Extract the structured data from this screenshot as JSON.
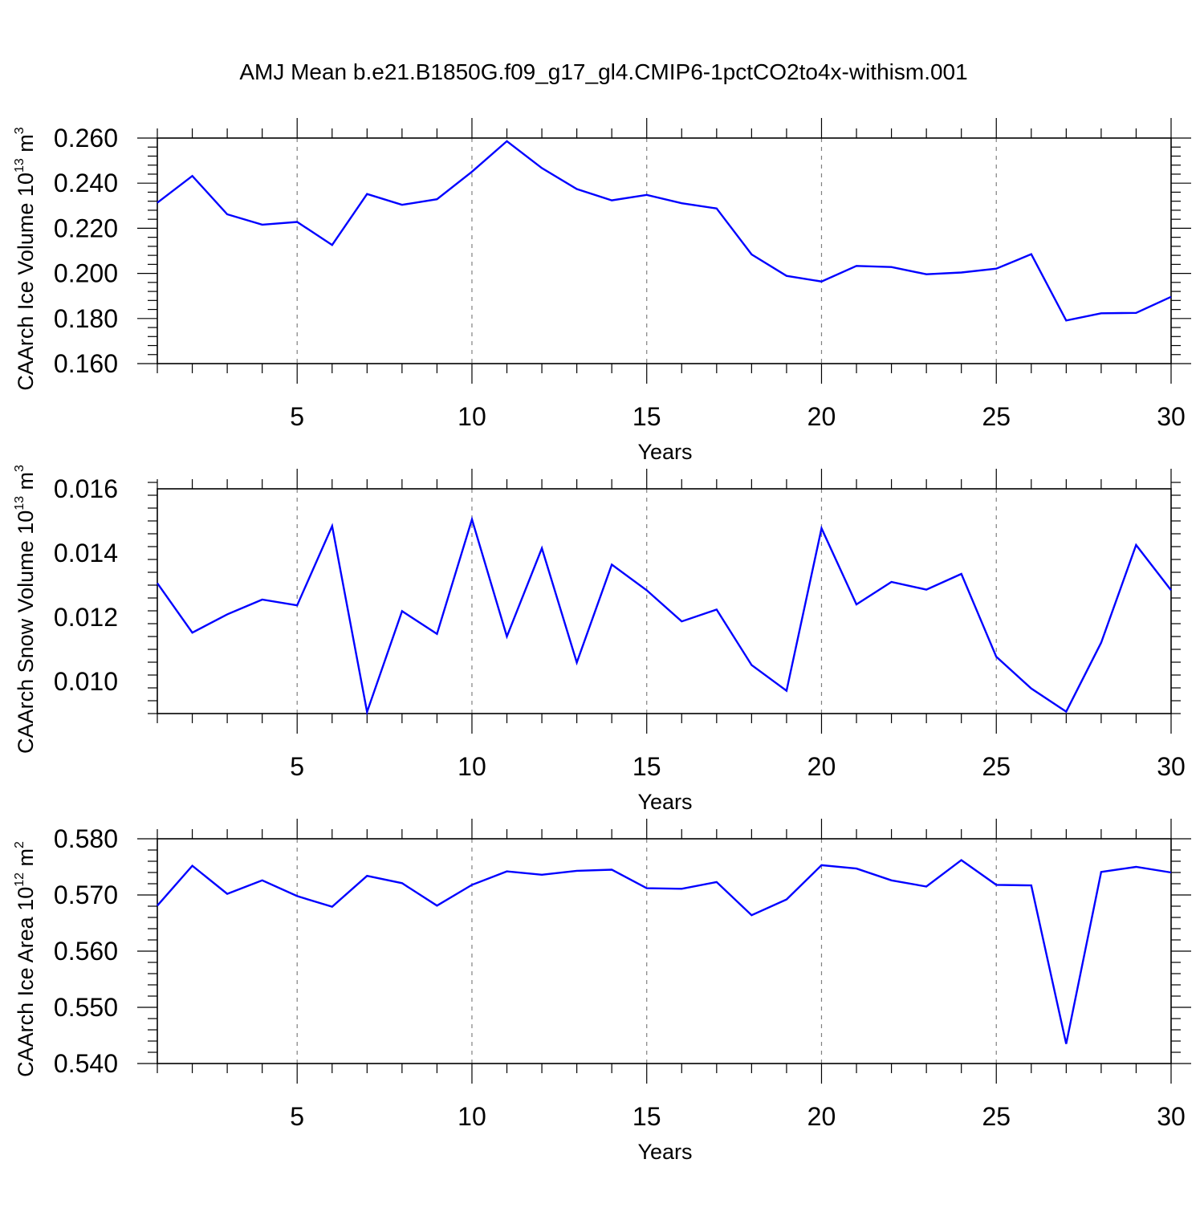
{
  "title": "AMJ Mean b.e21.B1850G.f09_g17_gl4.CMIP6-1pctCO2to4x-withism.001",
  "colors": {
    "line": "#0000ff",
    "axis": "#000000",
    "grid": "#808080",
    "background": "#ffffff"
  },
  "chart_data": [
    {
      "type": "line",
      "ylabel": {
        "prefix": "CAArch Ice Volume 10",
        "exponent": "13",
        "unit": " m",
        "unit_exponent": "3"
      },
      "xlabel": "Years",
      "xlim": [
        1,
        30
      ],
      "ylim": [
        0.16,
        0.26
      ],
      "xticks": [
        5,
        10,
        15,
        20,
        25,
        30
      ],
      "xtick_labels": [
        "5",
        "10",
        "15",
        "20",
        "25",
        "30"
      ],
      "yticks": [
        0.16,
        0.18,
        0.2,
        0.22,
        0.24,
        0.26
      ],
      "ytick_labels": [
        "0.160",
        "0.180",
        "0.200",
        "0.220",
        "0.240",
        "0.260"
      ],
      "grid_x": [
        5,
        10,
        15,
        20,
        25
      ],
      "x": [
        1,
        2,
        3,
        4,
        5,
        6,
        7,
        8,
        9,
        10,
        11,
        12,
        13,
        14,
        15,
        16,
        17,
        18,
        19,
        20,
        21,
        22,
        23,
        24,
        25,
        26,
        27,
        28,
        29,
        30
      ],
      "series": [
        {
          "name": "CAArch Ice Volume",
          "values": [
            0.2313,
            0.2432,
            0.2262,
            0.2216,
            0.2228,
            0.2126,
            0.2352,
            0.2304,
            0.2329,
            0.2451,
            0.2586,
            0.2467,
            0.2374,
            0.2324,
            0.2348,
            0.2311,
            0.2288,
            0.2084,
            0.1989,
            0.1964,
            0.2033,
            0.2028,
            0.1996,
            0.2004,
            0.2021,
            0.2085,
            0.1791,
            0.1823,
            0.1825,
            0.1896
          ]
        }
      ]
    },
    {
      "type": "line",
      "ylabel": {
        "prefix": "CAArch Snow Volume 10",
        "exponent": "13",
        "unit": " m",
        "unit_exponent": "3"
      },
      "xlabel": "Years",
      "xlim": [
        1,
        30
      ],
      "ylim": [
        0.009,
        0.016
      ],
      "xticks": [
        5,
        10,
        15,
        20,
        25,
        30
      ],
      "xtick_labels": [
        "5",
        "10",
        "15",
        "20",
        "25",
        "30"
      ],
      "yticks": [
        0.01,
        0.012,
        0.014,
        0.016
      ],
      "ytick_labels": [
        "0.010",
        "0.012",
        "0.014",
        "0.016"
      ],
      "grid_x": [
        5,
        10,
        15,
        20,
        25
      ],
      "x": [
        1,
        2,
        3,
        4,
        5,
        6,
        7,
        8,
        9,
        10,
        11,
        12,
        13,
        14,
        15,
        16,
        17,
        18,
        19,
        20,
        21,
        22,
        23,
        24,
        25,
        26,
        27,
        28,
        29,
        30
      ],
      "series": [
        {
          "name": "CAArch Snow Volume",
          "values": [
            0.01306,
            0.01152,
            0.01209,
            0.01255,
            0.01237,
            0.01484,
            0.00905,
            0.01219,
            0.01148,
            0.01505,
            0.0114,
            0.01415,
            0.01059,
            0.01364,
            0.01284,
            0.01187,
            0.01224,
            0.01051,
            0.00971,
            0.01477,
            0.0124,
            0.0131,
            0.01286,
            0.01335,
            0.01077,
            0.00978,
            0.00906,
            0.01121,
            0.01425,
            0.01284
          ]
        }
      ]
    },
    {
      "type": "line",
      "ylabel": {
        "prefix": "CAArch Ice Area 10",
        "exponent": "12",
        "unit": " m",
        "unit_exponent": "2"
      },
      "xlabel": "Years",
      "xlim": [
        1,
        30
      ],
      "ylim": [
        0.54,
        0.58
      ],
      "xticks": [
        5,
        10,
        15,
        20,
        25,
        30
      ],
      "xtick_labels": [
        "5",
        "10",
        "15",
        "20",
        "25",
        "30"
      ],
      "yticks": [
        0.54,
        0.55,
        0.56,
        0.57,
        0.58
      ],
      "ytick_labels": [
        "0.540",
        "0.550",
        "0.560",
        "0.570",
        "0.580"
      ],
      "grid_x": [
        5,
        10,
        15,
        20,
        25
      ],
      "x": [
        1,
        2,
        3,
        4,
        5,
        6,
        7,
        8,
        9,
        10,
        11,
        12,
        13,
        14,
        15,
        16,
        17,
        18,
        19,
        20,
        21,
        22,
        23,
        24,
        25,
        26,
        27,
        28,
        29,
        30
      ],
      "series": [
        {
          "name": "CAArch Ice Area",
          "values": [
            0.5681,
            0.5752,
            0.5702,
            0.5726,
            0.5698,
            0.5679,
            0.5734,
            0.5721,
            0.5681,
            0.5718,
            0.5742,
            0.5736,
            0.5743,
            0.5745,
            0.5712,
            0.5711,
            0.5723,
            0.5664,
            0.5692,
            0.5753,
            0.5747,
            0.5726,
            0.5715,
            0.5762,
            0.5718,
            0.5717,
            0.5435,
            0.5741,
            0.575,
            0.574
          ]
        }
      ]
    }
  ]
}
